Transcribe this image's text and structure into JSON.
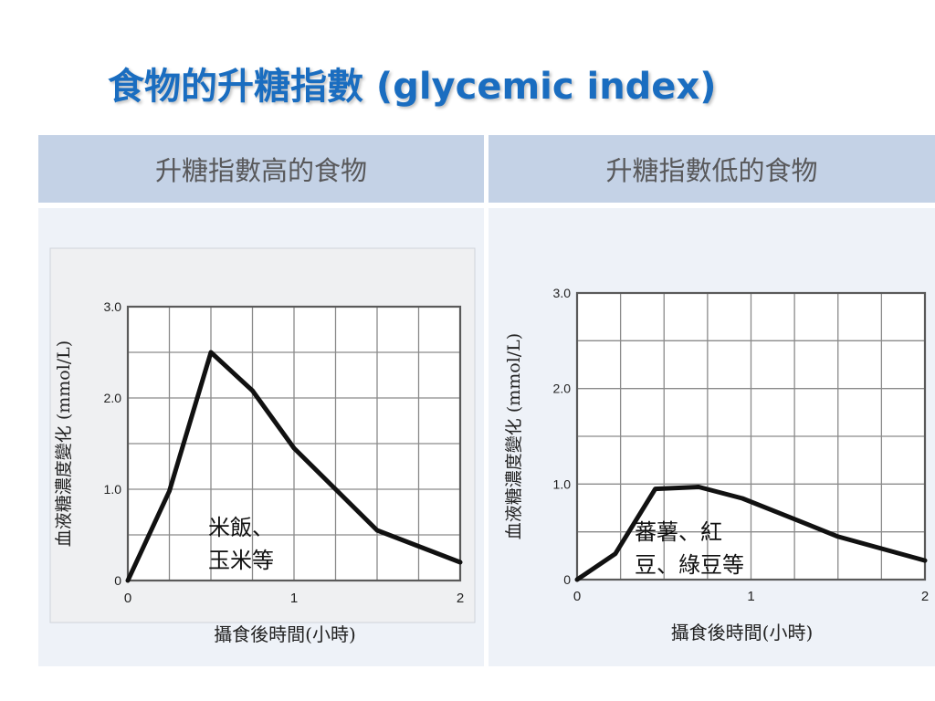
{
  "title": "食物的升糖指數 (glycemic index)",
  "columns": [
    {
      "header": "升糖指數高的食物",
      "chart_data": {
        "type": "line",
        "title": "",
        "xlabel": "攝食後時間(小時)",
        "ylabel": "血液糖濃度變化 (mmol/L)",
        "xlim": [
          0,
          2
        ],
        "ylim": [
          0,
          3
        ],
        "x_ticks": [
          "0",
          "1",
          "2"
        ],
        "y_ticks": [
          "0",
          "1.0",
          "2.0",
          "3.0"
        ],
        "grid": true,
        "annotation": [
          "米飯、",
          "玉米等"
        ],
        "series": [
          {
            "x": [
              0,
              0.25,
              0.5,
              0.75,
              1.0,
              1.25,
              1.5,
              2.0
            ],
            "y": [
              0,
              0.98,
              2.5,
              2.08,
              1.45,
              1.0,
              0.55,
              0.2
            ]
          }
        ]
      }
    },
    {
      "header": "升糖指數低的食物",
      "chart_data": {
        "type": "line",
        "title": "",
        "xlabel": "攝食後時間(小時)",
        "ylabel": "血液糖濃度變化 (mmol/L)",
        "xlim": [
          0,
          2
        ],
        "ylim": [
          0,
          3
        ],
        "x_ticks": [
          "0",
          "1",
          "2"
        ],
        "y_ticks": [
          "0",
          "1.0",
          "2.0",
          "3.0"
        ],
        "grid": true,
        "annotation": [
          "蕃薯、紅",
          "豆、綠豆等"
        ],
        "series": [
          {
            "x": [
              0,
              0.22,
              0.45,
              0.7,
              0.95,
              1.2,
              1.5,
              2.0
            ],
            "y": [
              0,
              0.27,
              0.95,
              0.97,
              0.85,
              0.67,
              0.45,
              0.2
            ]
          }
        ]
      }
    }
  ]
}
